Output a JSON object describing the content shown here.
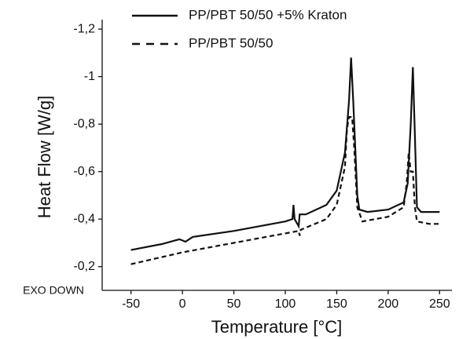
{
  "chart_data": {
    "type": "line",
    "x_label": "Temperature [°C]",
    "y_label": "Heat Flow [W/g]",
    "annotation": "EXO DOWN",
    "xlim": [
      -78,
      262
    ],
    "xticks": [
      -50,
      0,
      50,
      100,
      150,
      200,
      250
    ],
    "ylim": [
      -0.1,
      -1.24
    ],
    "yticks": [
      {
        "value": -0.2,
        "label": "-0,2"
      },
      {
        "value": -0.4,
        "label": "-0,4"
      },
      {
        "value": -0.6,
        "label": "-0,6"
      },
      {
        "value": -0.8,
        "label": "-0,8"
      },
      {
        "value": -1,
        "label": "-1"
      },
      {
        "value": -1.2,
        "label": "-1,2"
      }
    ],
    "series": [
      {
        "name": "PP/PBT 50/50 +5% Kraton",
        "color": "#111111",
        "dash": "solid",
        "x": [
          -50,
          -20,
          -3,
          0,
          3,
          10,
          50,
          100,
          107,
          108,
          109,
          113,
          114,
          120,
          140,
          150,
          158,
          162,
          164,
          166,
          170,
          172,
          180,
          200,
          215,
          219,
          222,
          224,
          226,
          228,
          232,
          250
        ],
        "values": [
          -0.27,
          -0.295,
          -0.315,
          -0.31,
          -0.305,
          -0.325,
          -0.35,
          -0.39,
          -0.4,
          -0.46,
          -0.4,
          -0.37,
          -0.42,
          -0.42,
          -0.46,
          -0.52,
          -0.68,
          -0.9,
          -1.08,
          -0.9,
          -0.5,
          -0.44,
          -0.43,
          -0.44,
          -0.47,
          -0.55,
          -0.8,
          -1.04,
          -0.75,
          -0.45,
          -0.43,
          -0.43
        ]
      },
      {
        "name": "PP/PBT 50/50",
        "color": "#111111",
        "dash": "dashed",
        "x": [
          -50,
          0,
          50,
          100,
          113,
          114,
          115,
          140,
          150,
          158,
          160,
          162,
          165,
          167,
          170,
          175,
          200,
          215,
          218,
          220,
          222,
          224,
          226,
          228,
          240,
          250
        ],
        "values": [
          -0.21,
          -0.26,
          -0.3,
          -0.34,
          -0.35,
          -0.33,
          -0.355,
          -0.4,
          -0.46,
          -0.62,
          -0.78,
          -0.83,
          -0.83,
          -0.7,
          -0.45,
          -0.39,
          -0.41,
          -0.45,
          -0.55,
          -0.68,
          -0.6,
          -0.6,
          -0.45,
          -0.39,
          -0.38,
          -0.38
        ]
      }
    ]
  }
}
